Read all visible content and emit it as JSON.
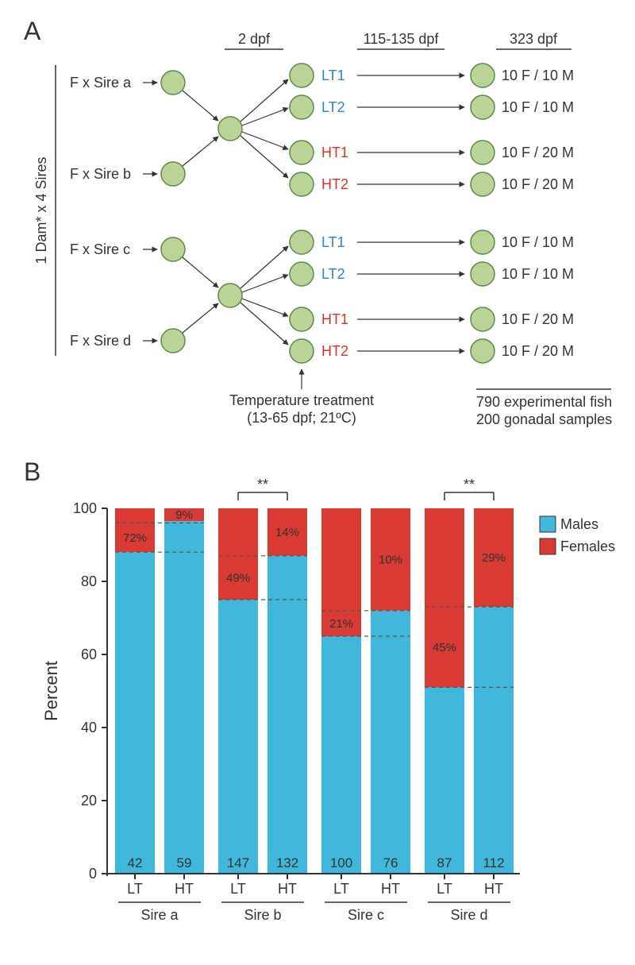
{
  "panelA": {
    "label": "A",
    "sideLabel": "1 Dam* x 4 Sires",
    "headers": {
      "col1": "2 dpf",
      "col2": "115-135 dpf",
      "col3": "323  dpf"
    },
    "crosses": [
      "F x Sire a",
      "F x Sire b",
      "F x Sire c",
      "F x Sire d"
    ],
    "treatments": [
      "LT1",
      "LT2",
      "HT1",
      "HT2"
    ],
    "lt_color": "#2a85c6",
    "ht_color": "#d0352a",
    "outcomes_group1": [
      "10 F  / 10 M",
      "10 F  / 10 M",
      "10 F  / 20 M",
      "10 F  / 20 M"
    ],
    "outcomes_group2": [
      "10 F  / 10 M",
      "10 F  / 10 M",
      "10 F  / 20 M",
      "10 F  / 20 M"
    ],
    "tempCaption1": "Temperature treatment",
    "tempCaption2": "(13-65 dpf; 21ºC)",
    "summary1": "790 experimental fish",
    "summary2": "200 gonadal samples",
    "node_fill": "#bad497",
    "node_stroke": "#5f874c",
    "arrow_color": "#333333"
  },
  "panelB": {
    "label": "B",
    "ylabel": "Percent",
    "ylim": [
      0,
      100
    ],
    "ytick_step": 20,
    "legend": {
      "males": "Males",
      "females": "Females"
    },
    "male_color": "#41b8db",
    "female_color": "#d93a33",
    "axis_color": "#333333",
    "dash_color": "#555555",
    "sires": [
      "Sire a",
      "Sire b",
      "Sire c",
      "Sire d"
    ],
    "groups": [
      {
        "sire": "Sire a",
        "sig": false,
        "bars": [
          {
            "label": "LT",
            "male_pct": 88,
            "dash_upper": 96,
            "pct_text": "72%",
            "n": 42
          },
          {
            "label": "HT",
            "male_pct": 96.5,
            "dash_upper": null,
            "pct_text": "9%",
            "n": 59
          }
        ]
      },
      {
        "sire": "Sire b",
        "sig": true,
        "bars": [
          {
            "label": "LT",
            "male_pct": 75,
            "dash_upper": 87,
            "pct_text": "49%",
            "n": 147
          },
          {
            "label": "HT",
            "male_pct": 87,
            "dash_upper": null,
            "pct_text": "14%",
            "n": 132
          }
        ]
      },
      {
        "sire": "Sire c",
        "sig": false,
        "bars": [
          {
            "label": "LT",
            "male_pct": 65,
            "dash_upper": 72,
            "pct_text": "21%",
            "n": 100
          },
          {
            "label": "HT",
            "male_pct": 72,
            "dash_upper": null,
            "pct_text": "10%",
            "n": 76
          }
        ]
      },
      {
        "sire": "Sire d",
        "sig": true,
        "bars": [
          {
            "label": "LT",
            "male_pct": 51,
            "dash_upper": 73,
            "pct_text": "45%",
            "n": 87
          },
          {
            "label": "HT",
            "male_pct": 73,
            "dash_upper": null,
            "pct_text": "29%",
            "n": 112
          }
        ]
      }
    ]
  }
}
